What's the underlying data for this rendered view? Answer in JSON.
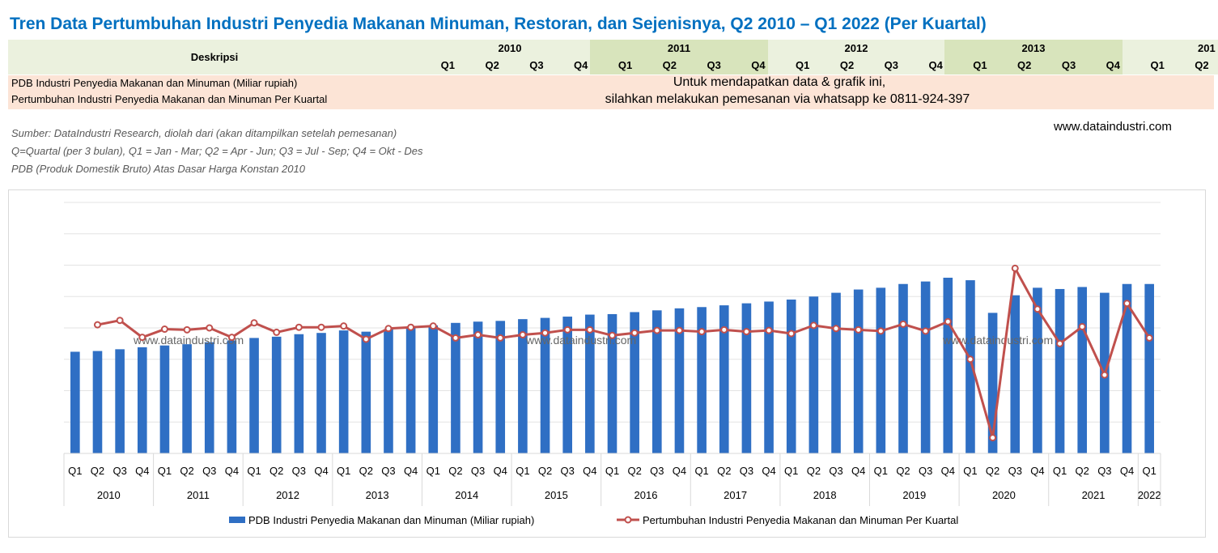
{
  "title": "Tren Data Pertumbuhan Industri Penyedia Makanan Minuman, Restoran, dan Sejenisnya, Q2 2010 – Q1 2022 (Per Kuartal)",
  "table": {
    "desc_header": "Deskripsi",
    "years": [
      "2010",
      "2011",
      "2012",
      "2013",
      "201"
    ],
    "quarters": [
      "Q1",
      "Q2",
      "Q3",
      "Q4",
      "Q1",
      "Q2",
      "Q3",
      "Q4",
      "Q1",
      "Q2",
      "Q3",
      "Q4",
      "Q1",
      "Q2",
      "Q3",
      "Q4",
      "Q1",
      "Q2"
    ],
    "row1": "PDB Industri Penyedia Makanan dan Minuman (Miliar rupiah)",
    "row2": "Pertumbuhan Industri Penyedia Makanan dan Minuman Per Kuartal",
    "order_line1": "Untuk mendapatkan data & grafik ini,",
    "order_line2": "silahkan melakukan pemesanan via whatsapp ke 0811-924-397"
  },
  "notes": {
    "source": "Sumber: DataIndustri Research, diolah dari (akan ditampilkan setelah pemesanan)",
    "quarter_def": "Q=Quartal (per 3 bulan), Q1 = Jan - Mar; Q2 = Apr - Jun; Q3 = Jul - Sep; Q4 = Okt - Des",
    "pdb_def": "PDB (Produk Domestik Bruto) Atas Dasar Harga Konstan 2010"
  },
  "site": "www.dataindustri.com",
  "watermark": "www.dataindustri.com",
  "colors": {
    "title": "#0070C0",
    "bar": "#2F6FC4",
    "line": "#C0504D",
    "header_bg": "#EBF1DE",
    "header_band": "#D8E4BC",
    "row_bg": "#FCE4D6"
  },
  "chart_data": {
    "type": "bar+line",
    "xlabel": "",
    "ylabel": "",
    "ylim": [
      0,
      100
    ],
    "y2lim": [
      -20,
      20
    ],
    "grid": true,
    "legend": "bottom",
    "categories": [
      "Q1",
      "Q2",
      "Q3",
      "Q4",
      "Q1",
      "Q2",
      "Q3",
      "Q4",
      "Q1",
      "Q2",
      "Q3",
      "Q4",
      "Q1",
      "Q2",
      "Q3",
      "Q4",
      "Q1",
      "Q2",
      "Q3",
      "Q4",
      "Q1",
      "Q2",
      "Q3",
      "Q4",
      "Q1",
      "Q2",
      "Q3",
      "Q4",
      "Q1",
      "Q2",
      "Q3",
      "Q4",
      "Q1",
      "Q2",
      "Q3",
      "Q4",
      "Q1",
      "Q2",
      "Q3",
      "Q4",
      "Q1",
      "Q2",
      "Q3",
      "Q4",
      "Q1",
      "Q2",
      "Q3",
      "Q4",
      "Q1"
    ],
    "years": [
      {
        "label": "2010",
        "count": 4
      },
      {
        "label": "2011",
        "count": 4
      },
      {
        "label": "2012",
        "count": 4
      },
      {
        "label": "2013",
        "count": 4
      },
      {
        "label": "2014",
        "count": 4
      },
      {
        "label": "2015",
        "count": 4
      },
      {
        "label": "2016",
        "count": 4
      },
      {
        "label": "2017",
        "count": 4
      },
      {
        "label": "2018",
        "count": 4
      },
      {
        "label": "2019",
        "count": 4
      },
      {
        "label": "2020",
        "count": 4
      },
      {
        "label": "2021",
        "count": 4
      },
      {
        "label": "2022",
        "count": 1
      }
    ],
    "series": [
      {
        "name": "PDB Industri Penyedia Makanan dan Minuman (Miliar rupiah)",
        "type": "bar",
        "axis": "left",
        "values": [
          40.5,
          40.8,
          41.5,
          42.3,
          43.0,
          43.5,
          44.3,
          45.0,
          46.0,
          46.5,
          47.5,
          48.0,
          49.0,
          48.5,
          49.5,
          50.5,
          51.0,
          52.0,
          52.5,
          52.8,
          53.5,
          54.0,
          54.5,
          55.3,
          55.5,
          56.3,
          57.0,
          57.8,
          58.3,
          59.0,
          59.8,
          60.5,
          61.3,
          62.5,
          64.0,
          65.3,
          66.0,
          67.5,
          68.5,
          70.0,
          69.0,
          56.0,
          63.0,
          66.0,
          65.5,
          66.3,
          64.0,
          67.5,
          67.5
        ]
      },
      {
        "name": "Pertumbuhan Industri Penyedia Makanan dan Minuman Per Kuartal",
        "type": "line",
        "axis": "right",
        "values": [
          null,
          0.5,
          1.2,
          -1.5,
          -0.2,
          -0.3,
          0.0,
          -1.5,
          0.8,
          -0.7,
          0.1,
          0.1,
          0.3,
          -1.8,
          -0.1,
          0.1,
          0.3,
          -1.6,
          -1.1,
          -1.6,
          -1.1,
          -0.8,
          -0.3,
          -0.3,
          -1.2,
          -0.8,
          -0.4,
          -0.4,
          -0.6,
          -0.3,
          -0.6,
          -0.4,
          -0.9,
          0.4,
          -0.1,
          -0.3,
          -0.5,
          0.6,
          -0.5,
          1.0,
          -5.0,
          -17.5,
          9.5,
          3.0,
          -2.5,
          0.2,
          -7.5,
          3.9,
          -1.6
        ]
      }
    ]
  }
}
